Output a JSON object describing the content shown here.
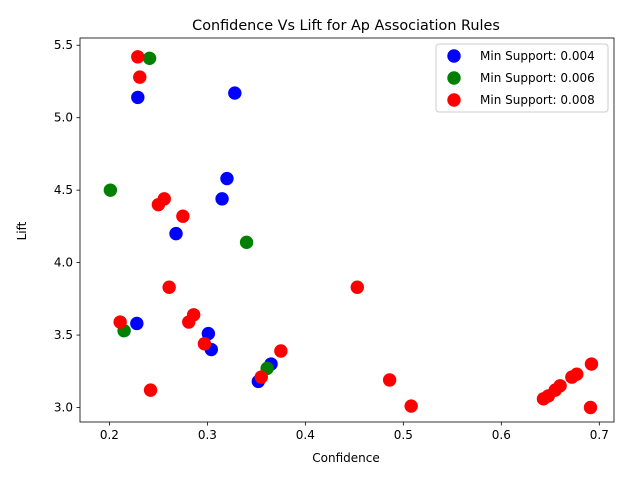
{
  "chart_data": {
    "type": "scatter",
    "title": "Confidence Vs Lift for Ap Association Rules",
    "xlabel": "Confidence",
    "ylabel": "Lift",
    "xlim": [
      0.17,
      0.715
    ],
    "ylim": [
      2.9,
      5.55
    ],
    "x_ticks": [
      0.2,
      0.3,
      0.4,
      0.5,
      0.6,
      0.7
    ],
    "x_tick_labels": [
      "0.2",
      "0.3",
      "0.4",
      "0.5",
      "0.6",
      "0.7"
    ],
    "y_ticks": [
      3.0,
      3.5,
      4.0,
      4.5,
      5.0,
      5.5
    ],
    "y_tick_labels": [
      "3.0",
      "3.5",
      "4.0",
      "4.5",
      "5.0",
      "5.5"
    ],
    "grid": false,
    "legend_position": "top-right",
    "series": [
      {
        "name": "Min Support: 0.004",
        "color": "#0000ff",
        "points": [
          [
            0.229,
            5.14
          ],
          [
            0.328,
            5.17
          ],
          [
            0.32,
            4.58
          ],
          [
            0.315,
            4.44
          ],
          [
            0.268,
            4.2
          ],
          [
            0.228,
            3.58
          ],
          [
            0.301,
            3.51
          ],
          [
            0.304,
            3.4
          ],
          [
            0.365,
            3.3
          ],
          [
            0.352,
            3.18
          ]
        ]
      },
      {
        "name": "Min Support: 0.006",
        "color": "#008000",
        "points": [
          [
            0.241,
            5.41
          ],
          [
            0.201,
            4.5
          ],
          [
            0.34,
            4.14
          ],
          [
            0.215,
            3.53
          ],
          [
            0.361,
            3.27
          ]
        ]
      },
      {
        "name": "Min Support: 0.008",
        "color": "#ff0000",
        "points": [
          [
            0.229,
            5.42
          ],
          [
            0.231,
            5.28
          ],
          [
            0.256,
            4.44
          ],
          [
            0.25,
            4.4
          ],
          [
            0.275,
            4.32
          ],
          [
            0.453,
            3.83
          ],
          [
            0.261,
            3.83
          ],
          [
            0.286,
            3.64
          ],
          [
            0.211,
            3.59
          ],
          [
            0.281,
            3.59
          ],
          [
            0.297,
            3.44
          ],
          [
            0.375,
            3.39
          ],
          [
            0.355,
            3.21
          ],
          [
            0.486,
            3.19
          ],
          [
            0.242,
            3.12
          ],
          [
            0.508,
            3.01
          ],
          [
            0.692,
            3.3
          ],
          [
            0.677,
            3.23
          ],
          [
            0.672,
            3.21
          ],
          [
            0.66,
            3.15
          ],
          [
            0.655,
            3.12
          ],
          [
            0.648,
            3.08
          ],
          [
            0.643,
            3.06
          ],
          [
            0.691,
            3.0
          ]
        ]
      }
    ]
  }
}
